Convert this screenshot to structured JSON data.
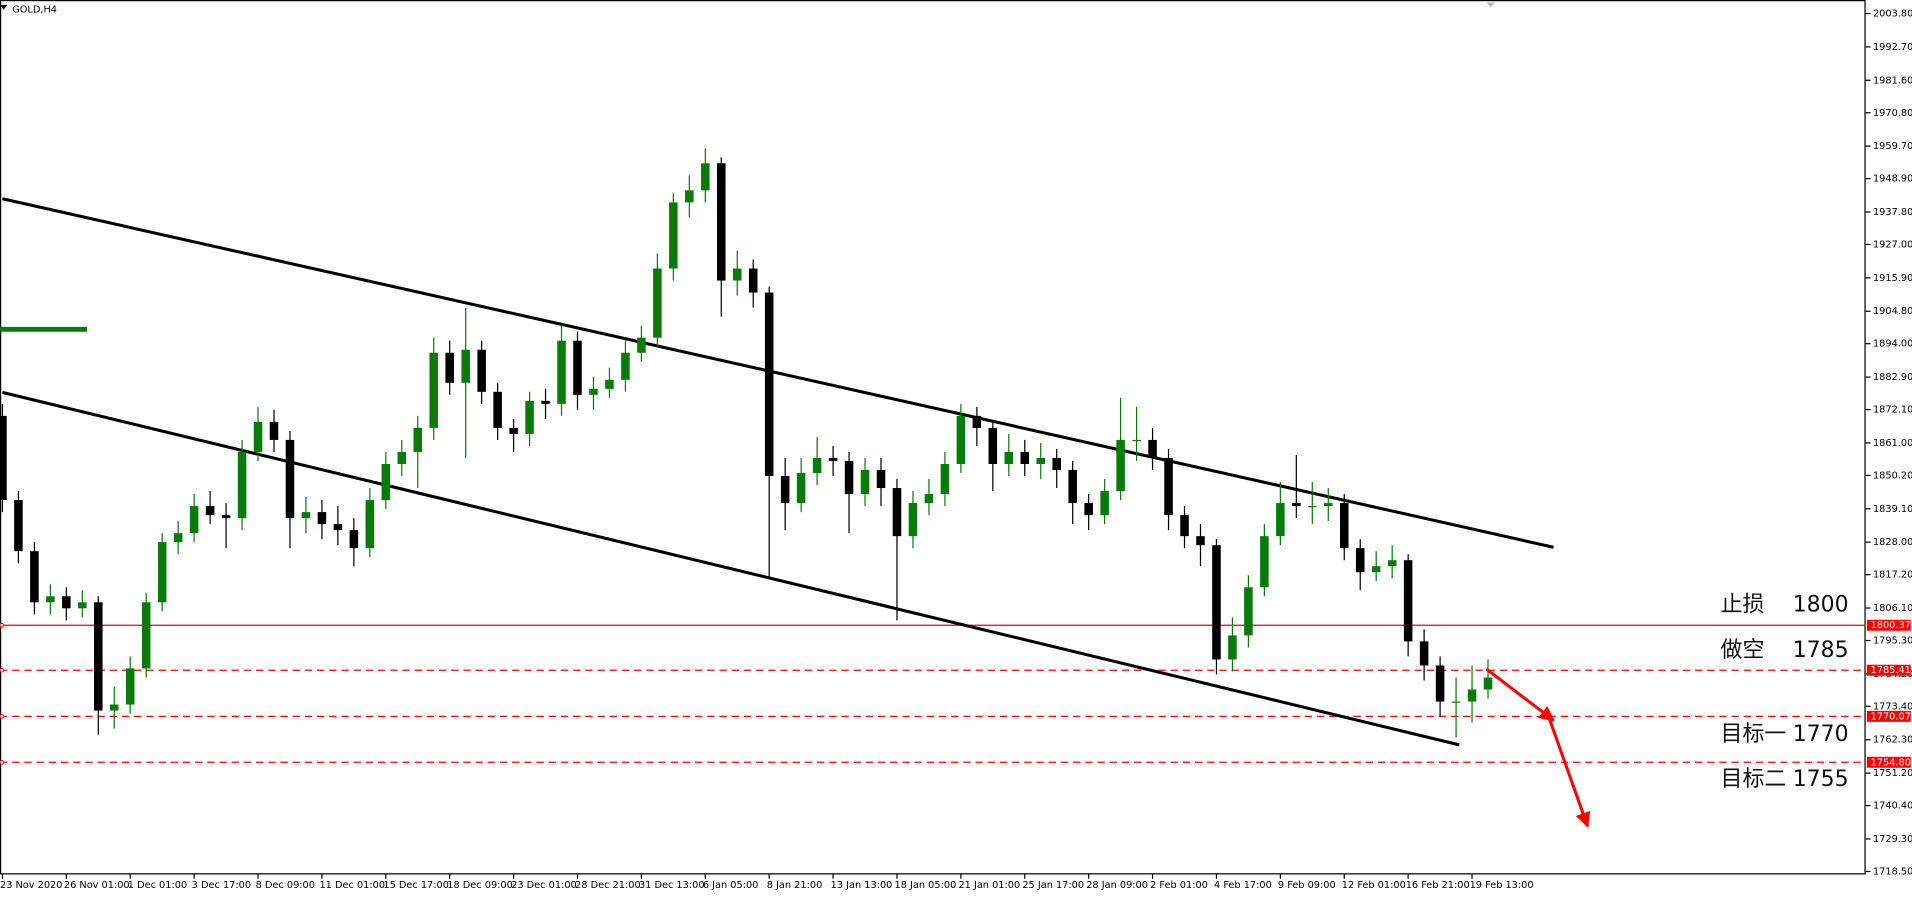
{
  "chart_data": {
    "type": "candlestick",
    "title": "GOLD,H4",
    "categories": [
      "23 Nov 2020",
      null,
      null,
      null,
      "26 Nov 01:00",
      null,
      null,
      null,
      "1 Dec 01:00",
      null,
      null,
      null,
      "3 Dec 17:00",
      null,
      null,
      null,
      "8 Dec 09:00",
      null,
      null,
      null,
      "11 Dec 01:00",
      null,
      null,
      null,
      "15 Dec 17:00",
      null,
      null,
      null,
      "18 Dec 09:00",
      null,
      null,
      null,
      "23 Dec 01:00",
      null,
      null,
      null,
      "28 Dec 21:00",
      null,
      null,
      null,
      "31 Dec 13:00",
      null,
      null,
      null,
      "6 Jan 05:00",
      null,
      null,
      null,
      "8 Jan 21:00",
      null,
      null,
      null,
      "13 Jan 13:00",
      null,
      null,
      null,
      "18 Jan 05:00",
      null,
      null,
      null,
      "21 Jan 01:00",
      null,
      null,
      null,
      "25 Jan 17:00",
      null,
      null,
      null,
      "28 Jan 09:00",
      null,
      null,
      null,
      "2 Feb 01:00",
      null,
      null,
      null,
      "4 Feb 17:00",
      null,
      null,
      null,
      "9 Feb 09:00",
      null,
      null,
      null,
      "12 Feb 01:00",
      null,
      null,
      null,
      "16 Feb 21:00",
      null,
      null,
      null,
      "19 Feb 13:00",
      null
    ],
    "open": [
      1870,
      1842,
      1825,
      1808,
      1810,
      1806,
      1808,
      1772,
      1774,
      1786,
      1808,
      1828,
      1831,
      1840,
      1837,
      1836,
      1858,
      1868,
      1862,
      1836,
      1838,
      1834,
      1832,
      1826,
      1842,
      1854,
      1858,
      1866,
      1891,
      1881,
      1892,
      1878,
      1866,
      1864,
      1875,
      1874,
      1895,
      1877,
      1879,
      1882,
      1891,
      1896,
      1919,
      1941,
      1945,
      1954,
      1915,
      1919,
      1911,
      1850,
      1841,
      1851,
      1856,
      1855,
      1844,
      1852,
      1846,
      1830,
      1841,
      1844,
      1854,
      1870,
      1866,
      1854,
      1858,
      1854,
      1856,
      1852,
      1841,
      1837,
      1845,
      1862,
      1862,
      1856,
      1837,
      1830,
      1827,
      1789,
      1797,
      1813,
      1830,
      1841,
      1840,
      1840,
      1841,
      1826,
      1818,
      1820,
      1822,
      1795,
      1787,
      1775,
      1775,
      1779
    ],
    "high": [
      1874,
      1845,
      1828,
      1814,
      1813,
      1812,
      1810,
      1780,
      1790,
      1811,
      1831,
      1835,
      1844,
      1845,
      1841,
      1862,
      1873,
      1872,
      1865,
      1843,
      1842,
      1840,
      1836,
      1846,
      1858,
      1862,
      1870,
      1896,
      1895,
      1906,
      1895,
      1881,
      1869,
      1878,
      1879,
      1900,
      1898,
      1883,
      1886,
      1895,
      1900,
      1924,
      1944,
      1950,
      1959,
      1956,
      1925,
      1922,
      1913,
      1856,
      1856,
      1863,
      1860,
      1858,
      1856,
      1856,
      1849,
      1845,
      1849,
      1858,
      1874,
      1873,
      1868,
      1864,
      1862,
      1861,
      1859,
      1855,
      1844,
      1849,
      1876,
      1873,
      1866,
      1859,
      1840,
      1834,
      1829,
      1803,
      1817,
      1834,
      1848,
      1857,
      1848,
      1846,
      1844,
      1829,
      1825,
      1827,
      1824,
      1799,
      1790,
      1783,
      1787,
      1789
    ],
    "low": [
      1838,
      1821,
      1804,
      1804,
      1802,
      1803,
      1764,
      1766,
      1771,
      1783,
      1805,
      1824,
      1828,
      1834,
      1826,
      1832,
      1855,
      1858,
      1826,
      1831,
      1829,
      1827,
      1820,
      1823,
      1839,
      1850,
      1846,
      1862,
      1877,
      1856,
      1874,
      1862,
      1858,
      1860,
      1869,
      1870,
      1872,
      1872,
      1876,
      1878,
      1888,
      1893,
      1915,
      1936,
      1941,
      1903,
      1910,
      1906,
      1816,
      1832,
      1838,
      1847,
      1850,
      1831,
      1840,
      1840,
      1802,
      1826,
      1837,
      1840,
      1851,
      1860,
      1845,
      1850,
      1850,
      1849,
      1846,
      1834,
      1832,
      1834,
      1842,
      1855,
      1852,
      1832,
      1826,
      1820,
      1784,
      1785,
      1793,
      1810,
      1827,
      1836,
      1834,
      1835,
      1822,
      1812,
      1815,
      1816,
      1790,
      1782,
      1770,
      1763,
      1768,
      1776
    ],
    "close": [
      1842,
      1825,
      1808,
      1810,
      1806,
      1808,
      1772,
      1774,
      1786,
      1808,
      1828,
      1831,
      1840,
      1837,
      1836,
      1858,
      1868,
      1862,
      1836,
      1838,
      1834,
      1832,
      1826,
      1842,
      1854,
      1858,
      1866,
      1891,
      1881,
      1892,
      1878,
      1866,
      1864,
      1875,
      1874,
      1895,
      1877,
      1879,
      1882,
      1891,
      1896,
      1919,
      1941,
      1945,
      1954,
      1915,
      1919,
      1911,
      1850,
      1841,
      1851,
      1856,
      1855,
      1844,
      1852,
      1846,
      1830,
      1841,
      1844,
      1854,
      1870,
      1866,
      1854,
      1858,
      1854,
      1856,
      1852,
      1841,
      1837,
      1845,
      1862,
      1862,
      1856,
      1837,
      1830,
      1827,
      1789,
      1797,
      1813,
      1830,
      1841,
      1840,
      1840,
      1841,
      1826,
      1818,
      1820,
      1822,
      1795,
      1787,
      1775,
      1775,
      1779,
      1783
    ],
    "up_color": "#0a7a0a",
    "down_color": "#000000",
    "ylim": [
      1717.7,
      2008.3
    ],
    "yticks": [
      {
        "value": 2003.8,
        "label": "2003.80"
      },
      {
        "value": 1992.7,
        "label": "1992.70"
      },
      {
        "value": 1981.6,
        "label": "1981.60"
      },
      {
        "value": 1970.8,
        "label": "1970.80"
      },
      {
        "value": 1959.7,
        "label": "1959.70"
      },
      {
        "value": 1948.9,
        "label": "1948.90"
      },
      {
        "value": 1937.8,
        "label": "1937.80"
      },
      {
        "value": 1927.0,
        "label": "1927.00"
      },
      {
        "value": 1915.9,
        "label": "1915.90"
      },
      {
        "value": 1904.8,
        "label": "1904.80"
      },
      {
        "value": 1894.0,
        "label": "1894.00"
      },
      {
        "value": 1882.9,
        "label": "1882.90"
      },
      {
        "value": 1872.1,
        "label": "1872.10"
      },
      {
        "value": 1861.0,
        "label": "1861.00"
      },
      {
        "value": 1850.2,
        "label": "1850.20"
      },
      {
        "value": 1839.1,
        "label": "1839.10"
      },
      {
        "value": 1828.0,
        "label": "1828.00"
      },
      {
        "value": 1817.2,
        "label": "1817.20"
      },
      {
        "value": 1806.1,
        "label": "1806.10"
      },
      {
        "value": 1795.3,
        "label": "1795.30"
      },
      {
        "value": 1784.2,
        "label": "1784.20"
      },
      {
        "value": 1773.4,
        "label": "1773.40"
      },
      {
        "value": 1762.3,
        "label": "1762.30"
      },
      {
        "value": 1751.2,
        "label": "1751.20"
      },
      {
        "value": 1740.4,
        "label": "1740.40"
      },
      {
        "value": 1729.3,
        "label": "1729.30"
      },
      {
        "value": 1718.5,
        "label": "1718.50"
      }
    ],
    "grid": false,
    "trend_lines": [
      {
        "start": [
          0,
          1942.2
        ],
        "end": [
          97.1,
          1826.3
        ],
        "color": "#000000"
      },
      {
        "start": [
          0,
          1877.8
        ],
        "end": [
          91.2,
          1760.6
        ],
        "color": "#000000"
      }
    ],
    "indicator": {
      "price": 1898.8,
      "end": 5.3,
      "color": "#0a7a0a"
    },
    "price_levels": [
      {
        "value": 1800.37,
        "label": "1800.37",
        "style": "solid",
        "color": "#ff0000"
      },
      {
        "value": 1785.41,
        "label": "1785.41",
        "style": "dashed",
        "color": "#ff0000"
      },
      {
        "value": 1770.07,
        "label": "1770.07",
        "style": "dashed",
        "color": "#ff0000"
      },
      {
        "value": 1754.8,
        "label": "1754.80",
        "style": "dashed",
        "color": "#ff0000"
      }
    ],
    "annotations": [
      {
        "text": "止损",
        "level": 1800,
        "position": "above"
      },
      {
        "text": "做空",
        "level": 1785,
        "position": "above"
      },
      {
        "text": "目标一",
        "level": 1770,
        "position": "below"
      },
      {
        "text": "目标二",
        "level": 1755,
        "position": "below"
      }
    ]
  }
}
